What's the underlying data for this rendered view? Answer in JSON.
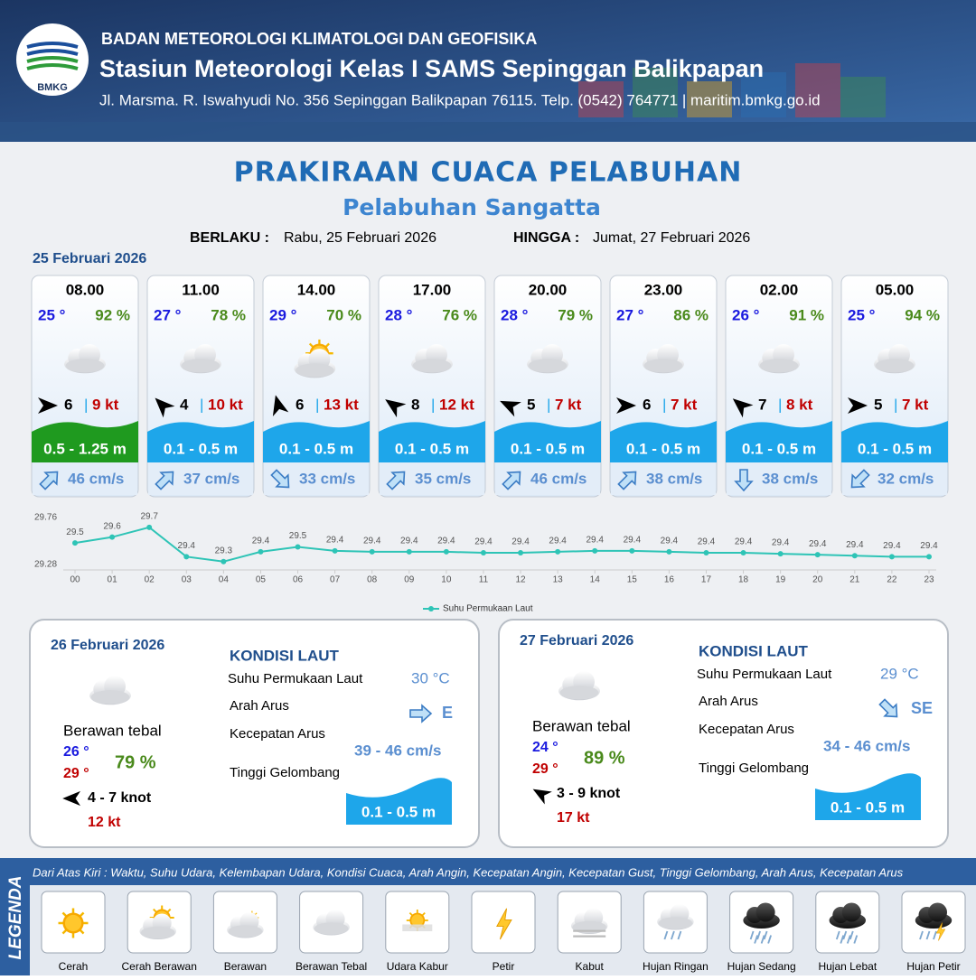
{
  "header": {
    "org": "BADAN METEOROLOGI KLIMATOLOGI DAN GEOFISIKA",
    "station": "Stasiun Meteorologi Kelas I SAMS Sepinggan Balikpapan",
    "address": "Jl. Marsma. R. Iswahyudi No. 356 Sepinggan Balikpapan 76115. Telp. (0542) 764771 | maritim.bmkg.go.id",
    "logo": "BMKG"
  },
  "title": "PRAKIRAAN CUACA PELABUHAN",
  "subtitle": "Pelabuhan Sangatta",
  "validity": {
    "from_label": "BERLAKU :",
    "from": "Rabu, 25 Februari 2026",
    "to_label": "HINGGA :",
    "to": "Jumat, 27 Februari 2026"
  },
  "day1": {
    "date": "25 Februari 2026",
    "forecasts": [
      {
        "time": "08.00",
        "temp": "25 °",
        "rh": "92 %",
        "wind": "6",
        "gust": "9 kt",
        "wave": "0.5 - 1.25 m",
        "wave_color": "#1f9a1f",
        "current": "46 cm/s"
      },
      {
        "time": "11.00",
        "temp": "27 °",
        "rh": "78 %",
        "wind": "4",
        "gust": "10 kt",
        "wave": "0.1 - 0.5 m",
        "wave_color": "#1ea6ea",
        "current": "37 cm/s"
      },
      {
        "time": "14.00",
        "temp": "29 °",
        "rh": "70 %",
        "wind": "6",
        "gust": "13 kt",
        "wave": "0.1 - 0.5 m",
        "wave_color": "#1ea6ea",
        "current": "33 cm/s"
      },
      {
        "time": "17.00",
        "temp": "28 °",
        "rh": "76 %",
        "wind": "8",
        "gust": "12 kt",
        "wave": "0.1 - 0.5 m",
        "wave_color": "#1ea6ea",
        "current": "35 cm/s"
      },
      {
        "time": "20.00",
        "temp": "28 °",
        "rh": "79 %",
        "wind": "5",
        "gust": "7 kt",
        "wave": "0.1 - 0.5 m",
        "wave_color": "#1ea6ea",
        "current": "46 cm/s"
      },
      {
        "time": "23.00",
        "temp": "27 °",
        "rh": "86 %",
        "wind": "6",
        "gust": "7 kt",
        "wave": "0.1 - 0.5 m",
        "wave_color": "#1ea6ea",
        "current": "38 cm/s"
      },
      {
        "time": "02.00",
        "temp": "26 °",
        "rh": "91 %",
        "wind": "7",
        "gust": "8 kt",
        "wave": "0.1 - 0.5 m",
        "wave_color": "#1ea6ea",
        "current": "38 cm/s"
      },
      {
        "time": "05.00",
        "temp": "25 °",
        "rh": "94 %",
        "wind": "5",
        "gust": "7 kt",
        "wave": "0.1 - 0.5 m",
        "wave_color": "#1ea6ea",
        "current": "32 cm/s"
      }
    ]
  },
  "chart_data": {
    "type": "line",
    "x": [
      "00",
      "01",
      "02",
      "03",
      "04",
      "05",
      "06",
      "07",
      "08",
      "09",
      "10",
      "11",
      "12",
      "13",
      "14",
      "15",
      "16",
      "17",
      "18",
      "19",
      "20",
      "21",
      "22",
      "23"
    ],
    "series": [
      {
        "name": "Suhu Permukaan Laut",
        "color": "#2ec4b6",
        "values": [
          29.5,
          29.56,
          29.66,
          29.36,
          29.31,
          29.41,
          29.46,
          29.42,
          29.41,
          29.41,
          29.41,
          29.4,
          29.4,
          29.41,
          29.42,
          29.42,
          29.41,
          29.4,
          29.4,
          29.39,
          29.38,
          29.37,
          29.36,
          29.36
        ],
        "value_labels": [
          "29.5",
          "29.6",
          "29.7",
          "29.4",
          "29.3",
          "29.4",
          "29.5",
          "29.4",
          "29.4",
          "29.4",
          "29.4",
          "29.4",
          "29.4",
          "29.4",
          "29.4",
          "29.4",
          "29.4",
          "29.4",
          "29.4",
          "29.4",
          "29.4",
          "29.4",
          "29.4",
          "29.4"
        ]
      }
    ],
    "ylim": [
      29.28,
      29.76
    ],
    "yticks": [
      29.28,
      29.76
    ],
    "legend": "bottom"
  },
  "days": [
    {
      "date": "26 Februari 2026",
      "weather": "Berawan tebal",
      "temp_min": "26 °",
      "temp_max": "29 °",
      "rh": "79 %",
      "wind": "4  - 7 knot",
      "gust": "12 kt",
      "sea": {
        "heading": "KONDISI LAUT",
        "sst_label": "Suhu Permukaan Laut",
        "sst": "30 °C",
        "current_dir_label": "Arah Arus",
        "current_dir": "E",
        "current_speed_label": "Kecepatan Arus",
        "current_speed": "39  - 46 cm/s",
        "wave_label": "Tinggi Gelombang",
        "wave": "0.1 - 0.5 m"
      }
    },
    {
      "date": "27 Februari 2026",
      "weather": "Berawan tebal",
      "temp_min": "24 °",
      "temp_max": "29 °",
      "rh": "89 %",
      "wind": "3  - 9 knot",
      "gust": "17 kt",
      "sea": {
        "heading": "KONDISI LAUT",
        "sst_label": "Suhu Permukaan Laut",
        "sst": "29 °C",
        "current_dir_label": "Arah Arus",
        "current_dir": "SE",
        "current_speed_label": "Kecepatan Arus",
        "current_speed": "34  - 46 cm/s",
        "wave_label": "Tinggi Gelombang",
        "wave": "0.1 - 0.5 m"
      }
    }
  ],
  "legend": {
    "title": "LEGENDA",
    "description": "Dari Atas Kiri : Waktu, Suhu Udara, Kelembapan Udara, Kondisi Cuaca, Arah Angin, Kecepatan Angin, Kecepatan Gust, Tinggi Gelombang, Arah Arus, Kecepatan Arus",
    "items": [
      "Cerah",
      "Cerah Berawan",
      "Berawan",
      "Berawan Tebal",
      "Udara Kabur",
      "Petir",
      "Kabut",
      "Hujan Ringan",
      "Hujan Sedang",
      "Hujan Lebat",
      "Hujan Petir"
    ]
  }
}
